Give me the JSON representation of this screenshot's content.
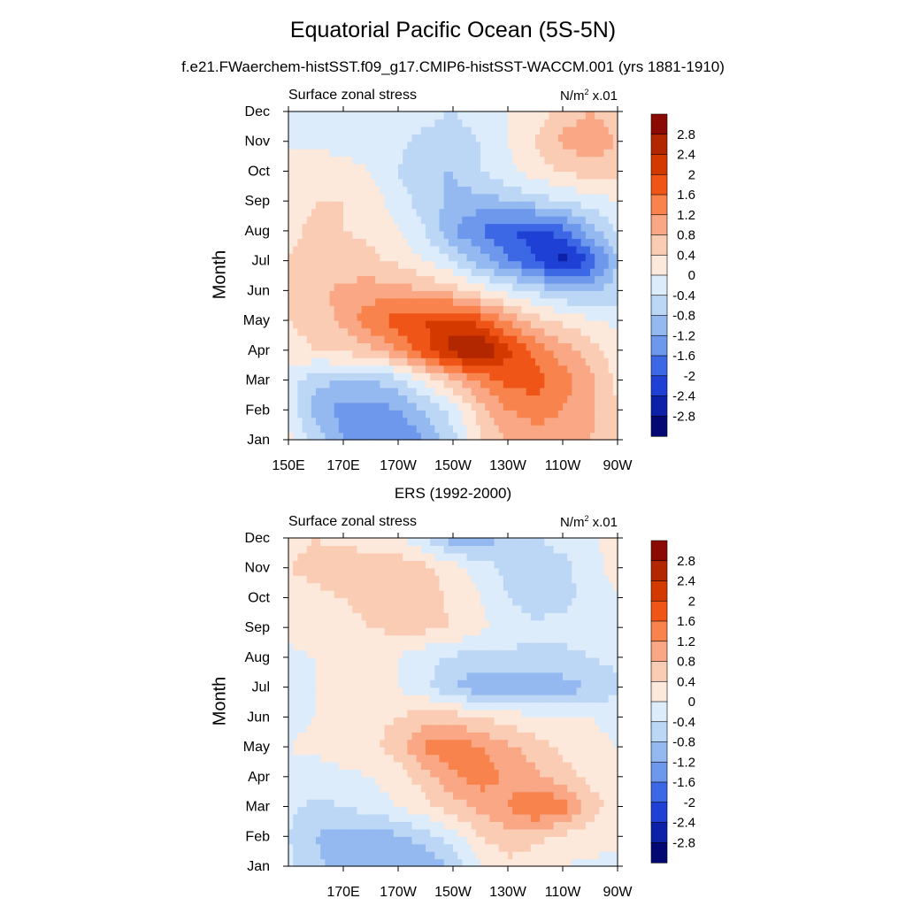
{
  "chart_data": {
    "type": "heatmap",
    "title": "Equatorial Pacific Ocean (5S-5N)",
    "colorbar": {
      "levels": [
        "2.8",
        "2.4",
        "2",
        "1.6",
        "1.2",
        "0.8",
        "0.4",
        "0",
        "-0.4",
        "-0.8",
        "-1.2",
        "-1.6",
        "-2",
        "-2.4",
        "-2.8"
      ],
      "colors": [
        "#8c0a04",
        "#b32700",
        "#d43a00",
        "#f05518",
        "#f8834c",
        "#f9a784",
        "#fbccb4",
        "#fde8dc",
        "#dcecfa",
        "#bcd7f6",
        "#94b9f0",
        "#6e98ec",
        "#3c68e6",
        "#1f40d4",
        "#0c21a8",
        "#040873"
      ]
    },
    "panels": [
      {
        "title_left": "Surface zonal stress",
        "units_text": "N/m",
        "units_sup": "2",
        "units_scale": " x.01",
        "caption": "",
        "ylabel": "Month",
        "months": [
          "Jan",
          "Feb",
          "Mar",
          "Apr",
          "May",
          "Jun",
          "Jul",
          "Aug",
          "Sep",
          "Oct",
          "Nov",
          "Dec"
        ],
        "xticks": [
          "150E",
          "170E",
          "170W",
          "150W",
          "130W",
          "110W",
          "90W"
        ],
        "xtick_values": [
          150,
          170,
          190,
          210,
          230,
          250,
          270
        ],
        "xlim": [
          150,
          270
        ],
        "grid_lon": [
          150,
          160,
          170,
          180,
          190,
          200,
          210,
          220,
          230,
          240,
          250,
          260,
          270
        ],
        "values": [
          [
            0.1,
            -0.5,
            -1.2,
            -1.6,
            -1.6,
            -1.2,
            -0.6,
            0.4,
            0.8,
            1.0,
            1.0,
            0.8,
            0.4
          ],
          [
            -0.2,
            -1.0,
            -1.4,
            -1.4,
            -1.2,
            -0.8,
            -0.2,
            0.6,
            1.2,
            1.4,
            1.2,
            0.9,
            0.4
          ],
          [
            -0.2,
            -0.7,
            -0.8,
            -0.8,
            -0.6,
            0.1,
            0.7,
            1.3,
            1.7,
            1.8,
            1.4,
            0.9,
            0.3
          ],
          [
            0.2,
            0.4,
            0.5,
            0.7,
            1.2,
            1.9,
            2.6,
            2.9,
            2.1,
            1.5,
            1.0,
            0.6,
            0.2
          ],
          [
            0.4,
            0.6,
            0.9,
            1.5,
            1.8,
            2.0,
            2.2,
            1.8,
            1.2,
            0.6,
            0.3,
            0.1,
            -0.1
          ],
          [
            0.4,
            0.7,
            0.9,
            1.0,
            1.0,
            0.8,
            0.6,
            0.2,
            -0.2,
            -0.5,
            -0.8,
            -0.9,
            -0.6
          ],
          [
            0.4,
            0.6,
            0.6,
            0.5,
            0.3,
            0.0,
            -0.4,
            -1.0,
            -1.5,
            -2.0,
            -2.6,
            -2.0,
            -0.8
          ],
          [
            0.3,
            0.5,
            0.4,
            0.3,
            0.0,
            -0.4,
            -1.2,
            -1.6,
            -2.0,
            -2.2,
            -1.8,
            -1.0,
            -0.4
          ],
          [
            0.2,
            0.4,
            0.4,
            0.2,
            -0.2,
            -0.6,
            -0.9,
            -1.0,
            -0.8,
            -0.6,
            -0.4,
            -0.2,
            0.0
          ],
          [
            0.2,
            0.3,
            0.2,
            0.0,
            -0.4,
            -0.8,
            -0.8,
            -0.4,
            -0.1,
            0.2,
            0.4,
            0.6,
            0.5
          ],
          [
            -0.1,
            -0.1,
            -0.2,
            -0.3,
            -0.3,
            -0.5,
            -0.6,
            -0.4,
            0.0,
            0.4,
            0.9,
            1.1,
            0.8
          ],
          [
            -0.2,
            -0.2,
            -0.2,
            -0.3,
            -0.3,
            -0.3,
            -0.4,
            -0.2,
            0.0,
            0.2,
            0.6,
            0.8,
            0.6
          ]
        ]
      },
      {
        "title_left": "Surface zonal stress",
        "units_text": "N/m",
        "units_sup": "2",
        "units_scale": " x.01",
        "caption": "ERS (1992-2000)",
        "ylabel": "Month",
        "months": [
          "Jan",
          "Feb",
          "Mar",
          "Apr",
          "May",
          "Jun",
          "Jul",
          "Aug",
          "Sep",
          "Oct",
          "Nov",
          "Dec"
        ],
        "xticks": [
          "170E",
          "170W",
          "150W",
          "130W",
          "110W",
          "90W"
        ],
        "xtick_values": [
          170,
          190,
          210,
          230,
          250,
          270
        ],
        "xlim": [
          150,
          270
        ],
        "grid_lon": [
          150,
          160,
          170,
          180,
          190,
          200,
          210,
          220,
          230,
          240,
          250,
          260,
          270
        ],
        "values": [
          [
            -0.3,
            -0.7,
            -1.0,
            -1.1,
            -1.2,
            -1.1,
            -0.7,
            0.0,
            0.3,
            0.2,
            0.0,
            -0.1,
            -0.1
          ],
          [
            -0.4,
            -0.8,
            -1.0,
            -1.0,
            -0.9,
            -0.6,
            -0.2,
            0.4,
            0.6,
            0.5,
            0.3,
            0.2,
            0.1
          ],
          [
            -0.3,
            -0.5,
            -0.4,
            -0.2,
            0.0,
            0.3,
            0.6,
            0.9,
            1.2,
            1.7,
            1.4,
            0.6,
            0.2
          ],
          [
            -0.1,
            -0.2,
            -0.1,
            0.0,
            0.2,
            0.6,
            1.1,
            1.4,
            1.1,
            0.9,
            0.6,
            0.3,
            0.1
          ],
          [
            0.0,
            0.1,
            0.2,
            0.3,
            0.6,
            1.3,
            1.5,
            1.2,
            0.9,
            0.6,
            0.3,
            0.1,
            0.0
          ],
          [
            -0.1,
            0.0,
            0.2,
            0.3,
            0.4,
            0.6,
            0.6,
            0.4,
            0.2,
            0.1,
            0.0,
            0.0,
            -0.1
          ],
          [
            -0.1,
            0.0,
            0.1,
            0.1,
            0.0,
            -0.3,
            -0.8,
            -1.1,
            -1.0,
            -1.1,
            -1.0,
            -0.8,
            -0.5
          ],
          [
            -0.1,
            0.0,
            0.1,
            0.1,
            0.0,
            -0.3,
            -0.5,
            -0.6,
            -0.5,
            -0.5,
            -0.5,
            -0.4,
            -0.3
          ],
          [
            0.1,
            0.2,
            0.3,
            0.4,
            0.5,
            0.5,
            0.4,
            0.1,
            -0.2,
            -0.3,
            -0.3,
            -0.2,
            -0.1
          ],
          [
            0.2,
            0.3,
            0.4,
            0.5,
            0.5,
            0.6,
            0.3,
            0.0,
            -0.4,
            -0.6,
            -0.5,
            -0.3,
            0.0
          ],
          [
            0.4,
            0.5,
            0.6,
            0.7,
            0.7,
            0.5,
            0.2,
            -0.2,
            -0.5,
            -0.6,
            -0.5,
            -0.2,
            0.2
          ],
          [
            0.3,
            0.4,
            0.3,
            0.2,
            0.1,
            -0.4,
            -1.0,
            -1.1,
            -0.6,
            -0.4,
            -0.3,
            -0.1,
            0.2
          ]
        ]
      }
    ]
  },
  "header": {
    "title": "Equatorial Pacific Ocean (5S-5N)",
    "subtitle": "f.e21.FWaerchem-histSST.f09_g17.CMIP6-histSST-WACCM.001 (yrs 1881-1910)"
  }
}
